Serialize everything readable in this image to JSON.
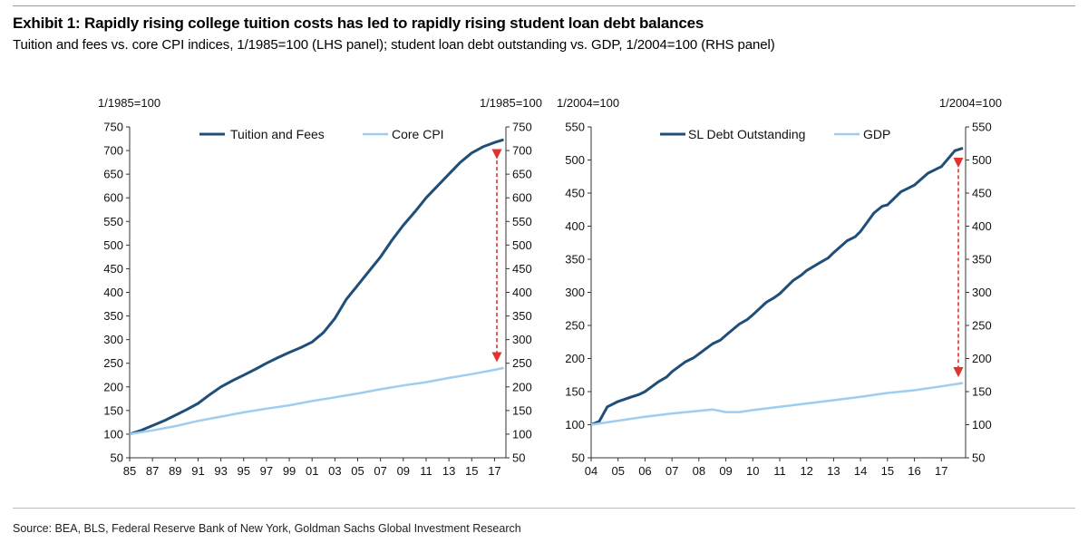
{
  "title": "Exhibit 1: Rapidly rising college tuition costs has led to rapidly rising student loan debt balances",
  "subtitle": "Tuition and fees vs. core CPI indices, 1/1985=100 (LHS panel); student loan debt outstanding vs. GDP, 1/2004=100 (RHS panel)",
  "source": "Source: BEA, BLS, Federal Reserve Bank of New York, Goldman Sachs Global Investment Research",
  "colors": {
    "dark_series": "#1f4e79",
    "light_series": "#9fcdef",
    "arrow": "#e0342c"
  },
  "chart_data": [
    {
      "type": "line",
      "left_axis_label": "1/1985=100",
      "right_axis_label": "1/1985=100",
      "ylim": [
        50,
        750
      ],
      "yticks": [
        "50",
        "100",
        "150",
        "200",
        "250",
        "300",
        "350",
        "400",
        "450",
        "500",
        "550",
        "600",
        "650",
        "700",
        "750"
      ],
      "xlim": [
        1985,
        2018
      ],
      "xticks": [
        "85",
        "87",
        "89",
        "91",
        "93",
        "95",
        "97",
        "99",
        "01",
        "03",
        "05",
        "07",
        "09",
        "11",
        "13",
        "15",
        "17"
      ],
      "xtick_years": [
        1985,
        1987,
        1989,
        1991,
        1993,
        1995,
        1997,
        1999,
        2001,
        2003,
        2005,
        2007,
        2009,
        2011,
        2013,
        2015,
        2017
      ],
      "legend_position": "top",
      "annotation": "red dashed double-headed arrow between series at end",
      "series": [
        {
          "name": "Tuition and Fees",
          "x": [
            1985,
            1986,
            1987,
            1988,
            1989,
            1990,
            1991,
            1992,
            1993,
            1994,
            1995,
            1996,
            1997,
            1998,
            1999,
            2000,
            2001,
            2002,
            2003,
            2004,
            2005,
            2006,
            2007,
            2008,
            2009,
            2010,
            2011,
            2012,
            2013,
            2014,
            2015,
            2016,
            2017,
            2017.8
          ],
          "values": [
            100,
            108,
            118,
            128,
            140,
            152,
            165,
            183,
            200,
            213,
            225,
            237,
            250,
            262,
            273,
            283,
            295,
            315,
            345,
            385,
            415,
            445,
            475,
            510,
            542,
            570,
            600,
            625,
            650,
            675,
            695,
            708,
            717,
            723
          ]
        },
        {
          "name": "Core CPI",
          "x": [
            1985,
            1987,
            1989,
            1991,
            1993,
            1995,
            1997,
            1999,
            2001,
            2003,
            2005,
            2007,
            2009,
            2011,
            2013,
            2015,
            2017,
            2017.8
          ],
          "values": [
            100,
            108,
            117,
            128,
            137,
            146,
            154,
            161,
            170,
            178,
            186,
            195,
            203,
            210,
            219,
            227,
            236,
            240
          ]
        }
      ]
    },
    {
      "type": "line",
      "left_axis_label": "1/2004=100",
      "right_axis_label": "1/2004=100",
      "ylim": [
        50,
        550
      ],
      "yticks": [
        "50",
        "100",
        "150",
        "200",
        "250",
        "300",
        "350",
        "400",
        "450",
        "500",
        "550"
      ],
      "xlim": [
        2004,
        2017.9
      ],
      "xticks": [
        "04",
        "05",
        "06",
        "07",
        "08",
        "09",
        "10",
        "11",
        "12",
        "13",
        "14",
        "15",
        "16",
        "17"
      ],
      "xtick_years": [
        2004,
        2005,
        2006,
        2007,
        2008,
        2009,
        2010,
        2011,
        2012,
        2013,
        2014,
        2015,
        2016,
        2017
      ],
      "legend_position": "top",
      "annotation": "red dashed double-headed arrow between series at end",
      "series": [
        {
          "name": "SL Debt Outstanding",
          "x": [
            2004,
            2004.3,
            2004.6,
            2005,
            2005.5,
            2005.8,
            2006,
            2006.5,
            2006.8,
            2007,
            2007.5,
            2007.8,
            2008,
            2008.5,
            2008.8,
            2009,
            2009.5,
            2009.8,
            2010,
            2010.5,
            2010.8,
            2011,
            2011.5,
            2011.8,
            2012,
            2012.5,
            2012.8,
            2013,
            2013.5,
            2013.8,
            2014,
            2014.5,
            2014.8,
            2015,
            2015.5,
            2015.8,
            2016,
            2016.5,
            2016.8,
            2017,
            2017.5,
            2017.8
          ],
          "values": [
            100,
            105,
            127,
            135,
            142,
            146,
            150,
            165,
            172,
            180,
            195,
            201,
            207,
            222,
            228,
            235,
            252,
            259,
            266,
            285,
            292,
            298,
            318,
            326,
            333,
            345,
            352,
            360,
            378,
            384,
            392,
            420,
            430,
            432,
            452,
            458,
            462,
            480,
            486,
            490,
            514,
            518
          ]
        },
        {
          "name": "GDP",
          "x": [
            2004,
            2005,
            2006,
            2007,
            2008,
            2008.5,
            2009,
            2009.5,
            2010,
            2011,
            2012,
            2013,
            2014,
            2015,
            2016,
            2017,
            2017.8
          ],
          "values": [
            100,
            106,
            112,
            117,
            121,
            123,
            119,
            119,
            122,
            127,
            132,
            137,
            142,
            148,
            152,
            158,
            163
          ]
        }
      ]
    }
  ]
}
